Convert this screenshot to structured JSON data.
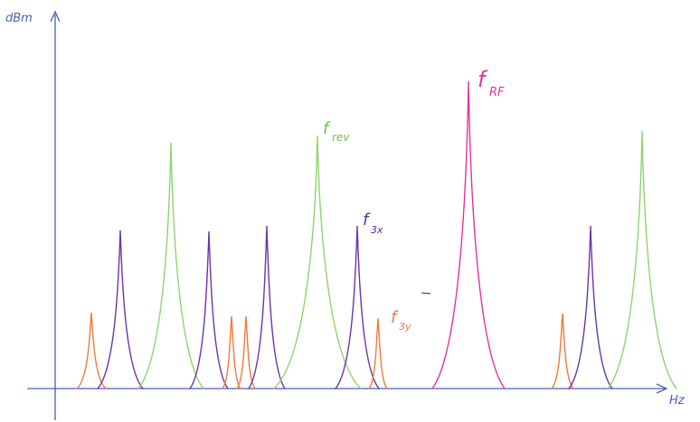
{
  "axes": {
    "y_label": "dBm",
    "x_label": "Hz",
    "axis_color": "#4a5fb0"
  },
  "annotations": {
    "f_rev": {
      "base": "f",
      "sub": "rev",
      "color": "#6cc24a"
    },
    "f_3x": {
      "base": "f",
      "sub": "3x",
      "color": "#5b2d8e"
    },
    "f_3y": {
      "base": "f",
      "sub": "3y",
      "color": "#f07a3c"
    },
    "f_rf": {
      "base": "f",
      "sub": "RF",
      "color": "#e0359a"
    }
  },
  "colors": {
    "orange": "#f07a3c",
    "purple": "#6a35a8",
    "green": "#8fd46a",
    "magenta": "#e0359a"
  }
}
